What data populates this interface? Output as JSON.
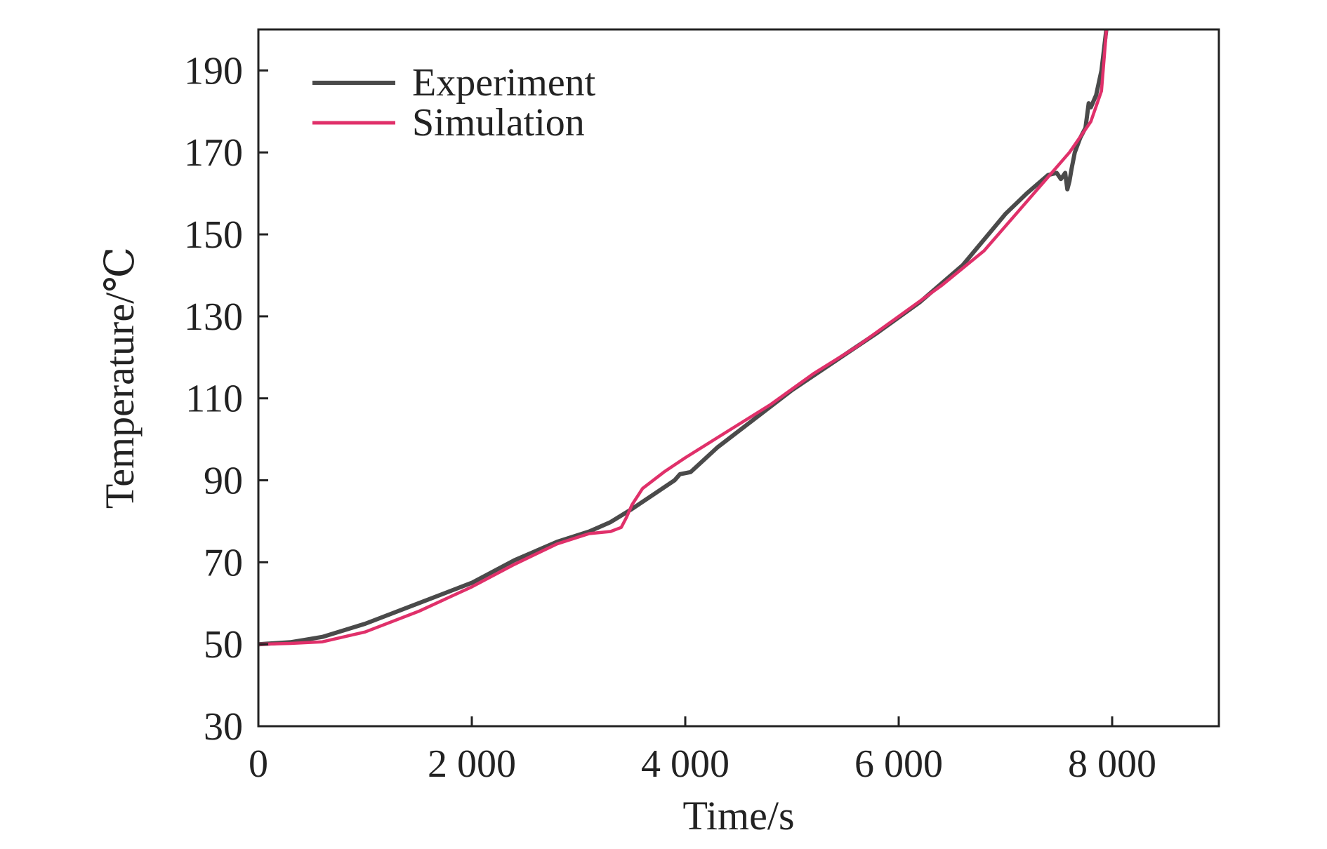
{
  "chart_data": {
    "type": "line",
    "title": "",
    "xlabel": "Time/s",
    "ylabel": "Temperature/℃",
    "xlim": [
      0,
      9000
    ],
    "ylim": [
      30,
      200
    ],
    "xticks": [
      0,
      2000,
      4000,
      6000,
      8000
    ],
    "xtick_labels": [
      "0",
      "2 000",
      "4 000",
      "6 000",
      "8 000"
    ],
    "yticks": [
      30,
      50,
      70,
      90,
      110,
      130,
      150,
      170,
      190
    ],
    "ytick_labels": [
      "30",
      "50",
      "70",
      "90",
      "110",
      "130",
      "150",
      "170",
      "190"
    ],
    "grid": false,
    "legend_position": "top-left",
    "series": [
      {
        "name": "Experiment",
        "color": "#4a4a4a",
        "x": [
          0,
          300,
          420,
          600,
          1000,
          1500,
          2000,
          2400,
          2800,
          3100,
          3300,
          3500,
          3700,
          3900,
          3950,
          4050,
          4300,
          4600,
          5000,
          5400,
          5800,
          6200,
          6600,
          7000,
          7200,
          7400,
          7480,
          7520,
          7560,
          7580,
          7600,
          7620,
          7650,
          7700,
          7750,
          7780,
          7800,
          7850,
          7900,
          7950
        ],
        "y": [
          50,
          50.5,
          51,
          51.8,
          55,
          60,
          65,
          70.5,
          75,
          77.5,
          79.8,
          83,
          86.5,
          90,
          91.5,
          92,
          98,
          104,
          112,
          119,
          126,
          133.5,
          142.5,
          155,
          160,
          164.5,
          165,
          163.5,
          165,
          161,
          163,
          166,
          170,
          173.5,
          176,
          182,
          181,
          184,
          190,
          201
        ]
      },
      {
        "name": "Simulation",
        "color": "#e0306a",
        "x": [
          0,
          300,
          600,
          1000,
          1500,
          2000,
          2400,
          2800,
          3100,
          3300,
          3400,
          3450,
          3500,
          3600,
          3800,
          4000,
          4400,
          4800,
          5200,
          5600,
          6000,
          6400,
          6800,
          7200,
          7600,
          7800,
          7900,
          7950
        ],
        "y": [
          50,
          50.2,
          50.6,
          53,
          58,
          64,
          69.5,
          74.5,
          77,
          77.5,
          78.5,
          81,
          84,
          88,
          92,
          95.5,
          102,
          108.5,
          116,
          122.5,
          130,
          137.5,
          146,
          158,
          170,
          177.5,
          185,
          201
        ]
      }
    ]
  }
}
